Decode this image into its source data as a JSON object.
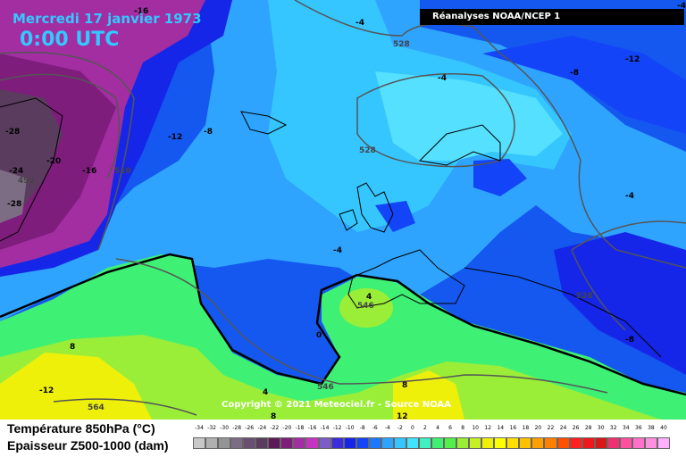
{
  "header": {
    "date": "Mercredi 17 janvier 1973",
    "time": "0:00 UTC",
    "source": "Réanalyses NOAA/NCEP 1"
  },
  "map": {
    "copyright": "Copyright © 2021 Meteociel.fr - Source NOAA",
    "temperature_labels": [
      "-16",
      "-12",
      "-8",
      "-28",
      "-20",
      "-16",
      "-24",
      "-28",
      "-4",
      "-4",
      "-8",
      "-12",
      "-4",
      "-4",
      "-8",
      "-4",
      "4",
      "0",
      "8",
      "-12",
      "4",
      "8",
      "8",
      "12"
    ],
    "thickness_labels": [
      "528",
      "528",
      "510",
      "492",
      "528",
      "546",
      "546",
      "564"
    ],
    "colors": {
      "deep_purple": "#7a1a78",
      "purple": "#a42ea2",
      "blue": "#1458f0",
      "light_blue": "#35c0ff",
      "green": "#3ee87c",
      "yellow": "#ffff33"
    }
  },
  "legend": {
    "temperature_title": "Température 850hPa (°C)",
    "thickness_title": "Epaisseur Z500-1000 (dam)",
    "scale_labels": [
      "-34",
      "-32",
      "-30",
      "-28",
      "-26",
      "-24",
      "-22",
      "-20",
      "-18",
      "-16",
      "-14",
      "-12",
      "-10",
      "-8",
      "-6",
      "-4",
      "-2",
      "0",
      "2",
      "4",
      "6",
      "8",
      "10",
      "12",
      "14",
      "16",
      "18",
      "20",
      "22",
      "24",
      "26",
      "28",
      "30",
      "32",
      "34",
      "36",
      "38",
      "40"
    ],
    "scale_colors": [
      "#c8c8c8",
      "#b0b0b0",
      "#949494",
      "#7c6c84",
      "#6a5070",
      "#5a3c5e",
      "#5c1a58",
      "#7e1d7c",
      "#a22ea2",
      "#c434c0",
      "#7c5cc8",
      "#3b2cdc",
      "#1626e8",
      "#1444f8",
      "#1e78ff",
      "#2fa4ff",
      "#35c6ff",
      "#40e4ff",
      "#40f0c0",
      "#3ef074",
      "#54f04a",
      "#9aee38",
      "#c6f024",
      "#eef00a",
      "#ffff00",
      "#ffe000",
      "#ffc000",
      "#ffa000",
      "#ff8000",
      "#ff5000",
      "#ff2020",
      "#f01818",
      "#d81818",
      "#f03070",
      "#ff50a0",
      "#ff70c8",
      "#ff90e0",
      "#ffb0ff"
    ]
  }
}
